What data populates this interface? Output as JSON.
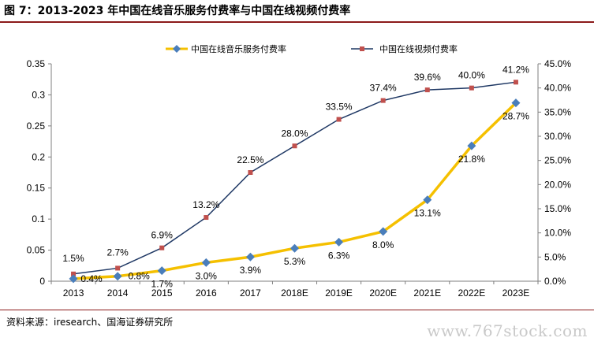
{
  "figure": {
    "title": "图 7：2013-2023 年中国在线音乐服务付费率与中国在线视频付费率",
    "source": "资料来源：iresearch、国海证券研究所",
    "watermark": "www.767stock.com"
  },
  "chart_data": {
    "type": "line",
    "categories": [
      "2013",
      "2014",
      "2015",
      "2016",
      "2017",
      "2018E",
      "2019E",
      "2020E",
      "2021E",
      "2022E",
      "2023E"
    ],
    "series": [
      {
        "name": "中国在线音乐服务付费率",
        "axis": "left",
        "color": "#f5c000",
        "marker": "diamond",
        "marker_color": "#4a7ebb",
        "values": [
          0.004,
          0.008,
          0.017,
          0.03,
          0.039,
          0.053,
          0.063,
          0.08,
          0.131,
          0.218,
          0.287
        ],
        "labels": [
          "0.4%",
          "0.8%",
          "1.7%",
          "3.0%",
          "3.9%",
          "5.3%",
          "6.3%",
          "8.0%",
          "13.1%",
          "21.8%",
          "28.7%"
        ]
      },
      {
        "name": "中国在线视频付费率",
        "axis": "right",
        "color": "#1f3864",
        "marker": "square",
        "marker_color": "#c0504d",
        "values": [
          0.015,
          0.027,
          0.069,
          0.132,
          0.225,
          0.28,
          0.335,
          0.374,
          0.396,
          0.4,
          0.412
        ],
        "labels": [
          "1.5%",
          "2.7%",
          "6.9%",
          "13.2%",
          "22.5%",
          "28.0%",
          "33.5%",
          "37.4%",
          "39.6%",
          "40.0%",
          "41.2%"
        ]
      }
    ],
    "y_left": {
      "ylim": [
        0,
        0.35
      ],
      "ticks": [
        "0",
        "0.05",
        "0.1",
        "0.15",
        "0.2",
        "0.25",
        "0.3",
        "0.35"
      ]
    },
    "y_right": {
      "ylim": [
        0,
        0.45
      ],
      "ticks": [
        "0.0%",
        "5.0%",
        "10.0%",
        "15.0%",
        "20.0%",
        "25.0%",
        "30.0%",
        "35.0%",
        "40.0%",
        "45.0%"
      ]
    },
    "grid": false,
    "legend_position": "top"
  }
}
